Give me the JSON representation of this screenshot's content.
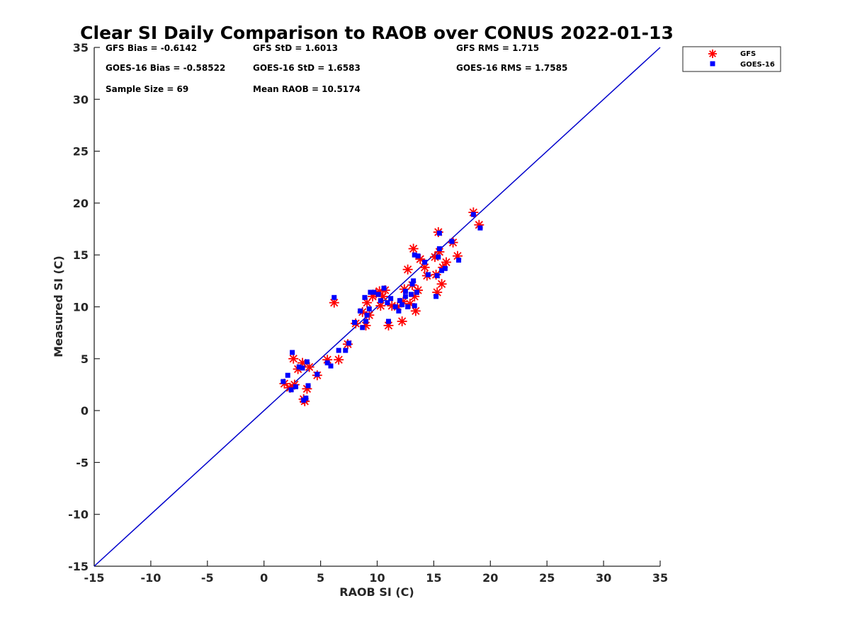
{
  "chart_data": {
    "type": "scatter",
    "title": "Clear SI Daily Comparison to RAOB over CONUS 2022-01-13",
    "xlabel": "RAOB SI (C)",
    "ylabel": "Measured SI (C)",
    "xlim": [
      -15,
      35
    ],
    "ylim": [
      -15,
      35
    ],
    "xticks": [
      "-15",
      "-10",
      "-5",
      "0",
      "5",
      "10",
      "15",
      "20",
      "25",
      "30",
      "35"
    ],
    "yticks": [
      "-15",
      "-10",
      "-5",
      "0",
      "5",
      "10",
      "15",
      "20",
      "25",
      "30",
      "35"
    ],
    "grid": false,
    "legend_position": "top-right, outside plot",
    "reference_line": {
      "from": [
        -15,
        -15
      ],
      "to": [
        35,
        35
      ],
      "color": "#0000cc"
    },
    "stats": [
      "GFS Bias = -0.6142",
      "GFS StD = 1.6013",
      "GFS RMS = 1.715",
      "GOES-16 Bias = -0.58522",
      "GOES-16 StD = 1.6583",
      "GOES-16 RMS = 1.7585",
      "Sample Size = 69",
      "Mean RAOB = 10.5174"
    ],
    "series": [
      {
        "name": "GFS",
        "marker": "asterisk",
        "color": "#ff0000",
        "points": [
          [
            1.8,
            2.6
          ],
          [
            2.3,
            2.2
          ],
          [
            2.6,
            5.0
          ],
          [
            2.7,
            2.5
          ],
          [
            3.0,
            4.0
          ],
          [
            3.4,
            4.6
          ],
          [
            3.5,
            1.1
          ],
          [
            3.6,
            0.9
          ],
          [
            3.8,
            2.1
          ],
          [
            4.0,
            4.2
          ],
          [
            4.7,
            3.4
          ],
          [
            5.6,
            4.9
          ],
          [
            6.2,
            10.4
          ],
          [
            6.6,
            4.9
          ],
          [
            7.4,
            6.4
          ],
          [
            8.1,
            8.4
          ],
          [
            8.7,
            9.5
          ],
          [
            9.0,
            8.2
          ],
          [
            9.1,
            10.4
          ],
          [
            9.3,
            9.2
          ],
          [
            9.6,
            11.0
          ],
          [
            9.9,
            11.3
          ],
          [
            10.2,
            11.5
          ],
          [
            10.3,
            10.1
          ],
          [
            10.5,
            11.0
          ],
          [
            10.7,
            11.6
          ],
          [
            11.0,
            8.2
          ],
          [
            11.3,
            10.1
          ],
          [
            11.8,
            10.0
          ],
          [
            12.2,
            8.6
          ],
          [
            12.3,
            10.5
          ],
          [
            12.4,
            11.7
          ],
          [
            12.7,
            13.6
          ],
          [
            12.9,
            10.3
          ],
          [
            13.1,
            12.1
          ],
          [
            13.2,
            15.6
          ],
          [
            13.3,
            11.0
          ],
          [
            13.4,
            9.6
          ],
          [
            13.6,
            11.6
          ],
          [
            13.8,
            14.6
          ],
          [
            14.2,
            13.8
          ],
          [
            14.4,
            13.0
          ],
          [
            15.1,
            14.8
          ],
          [
            15.2,
            13.1
          ],
          [
            15.3,
            11.4
          ],
          [
            15.4,
            17.2
          ],
          [
            15.5,
            15.3
          ],
          [
            15.7,
            12.2
          ],
          [
            15.8,
            13.8
          ],
          [
            16.1,
            14.3
          ],
          [
            16.7,
            16.2
          ],
          [
            17.1,
            14.9
          ],
          [
            18.5,
            19.1
          ],
          [
            19.0,
            17.9
          ]
        ]
      },
      {
        "name": "GOES-16",
        "marker": "square",
        "color": "#0000ff",
        "points": [
          [
            1.7,
            2.8
          ],
          [
            2.1,
            3.4
          ],
          [
            2.4,
            2.0
          ],
          [
            2.5,
            5.6
          ],
          [
            2.8,
            2.3
          ],
          [
            3.1,
            4.2
          ],
          [
            3.4,
            4.1
          ],
          [
            3.5,
            1.0
          ],
          [
            3.7,
            1.2
          ],
          [
            3.8,
            4.7
          ],
          [
            3.9,
            2.4
          ],
          [
            4.7,
            3.5
          ],
          [
            5.6,
            4.6
          ],
          [
            5.9,
            4.3
          ],
          [
            6.2,
            10.9
          ],
          [
            6.6,
            5.8
          ],
          [
            7.2,
            5.8
          ],
          [
            7.5,
            6.5
          ],
          [
            8.0,
            8.5
          ],
          [
            8.5,
            9.6
          ],
          [
            8.7,
            8.0
          ],
          [
            8.9,
            10.9
          ],
          [
            9.0,
            8.6
          ],
          [
            9.1,
            9.2
          ],
          [
            9.3,
            9.8
          ],
          [
            9.4,
            11.4
          ],
          [
            9.7,
            11.4
          ],
          [
            10.1,
            11.2
          ],
          [
            10.3,
            10.6
          ],
          [
            10.6,
            11.8
          ],
          [
            10.9,
            10.4
          ],
          [
            11.0,
            8.6
          ],
          [
            11.2,
            10.8
          ],
          [
            11.6,
            10.0
          ],
          [
            11.9,
            9.6
          ],
          [
            12.0,
            10.6
          ],
          [
            12.2,
            10.2
          ],
          [
            12.5,
            11.5
          ],
          [
            12.5,
            11.0
          ],
          [
            12.7,
            10.0
          ],
          [
            13.0,
            11.2
          ],
          [
            13.1,
            12.2
          ],
          [
            13.2,
            12.5
          ],
          [
            13.3,
            15.0
          ],
          [
            13.3,
            10.1
          ],
          [
            13.5,
            11.4
          ],
          [
            13.6,
            14.9
          ],
          [
            14.2,
            14.3
          ],
          [
            14.5,
            13.1
          ],
          [
            15.2,
            11.0
          ],
          [
            15.3,
            13.0
          ],
          [
            15.4,
            14.8
          ],
          [
            15.5,
            17.1
          ],
          [
            15.5,
            15.6
          ],
          [
            15.7,
            13.5
          ],
          [
            16.0,
            13.7
          ],
          [
            16.6,
            16.3
          ],
          [
            17.2,
            14.5
          ],
          [
            18.5,
            18.9
          ],
          [
            19.1,
            17.6
          ]
        ]
      }
    ]
  }
}
